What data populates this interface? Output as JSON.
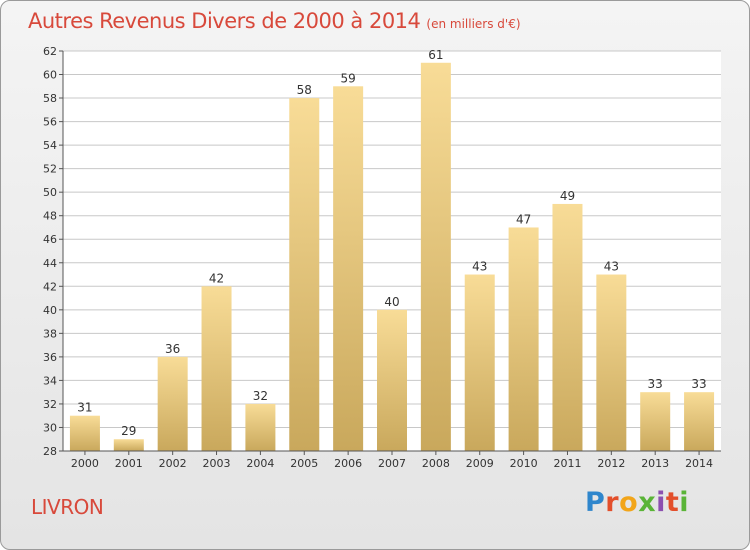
{
  "header": {
    "title": "Autres Revenus Divers de 2000 à 2014",
    "unit": "(en milliers d'€)"
  },
  "footer": {
    "city": "LIVRON",
    "logo_parts": [
      "P",
      "r",
      "o",
      "x",
      "i",
      "t",
      "i"
    ]
  },
  "colors": {
    "accent": "#d8493b",
    "bar_light": "#f8dc97",
    "bar_dark": "#c9a85c",
    "grid": "#c8c8c8",
    "axis": "#555555"
  },
  "chart_data": {
    "type": "bar",
    "categories": [
      "2000",
      "2001",
      "2002",
      "2003",
      "2004",
      "2005",
      "2006",
      "2007",
      "2008",
      "2009",
      "2010",
      "2011",
      "2012",
      "2013",
      "2014"
    ],
    "values": [
      31,
      29,
      36,
      42,
      32,
      58,
      59,
      40,
      61,
      43,
      47,
      49,
      43,
      33,
      33
    ],
    "ylim": [
      28,
      62
    ],
    "yticks": [
      28,
      30,
      32,
      34,
      36,
      38,
      40,
      42,
      44,
      46,
      48,
      50,
      52,
      54,
      56,
      58,
      60,
      62
    ],
    "grid": true,
    "data_labels": true
  }
}
